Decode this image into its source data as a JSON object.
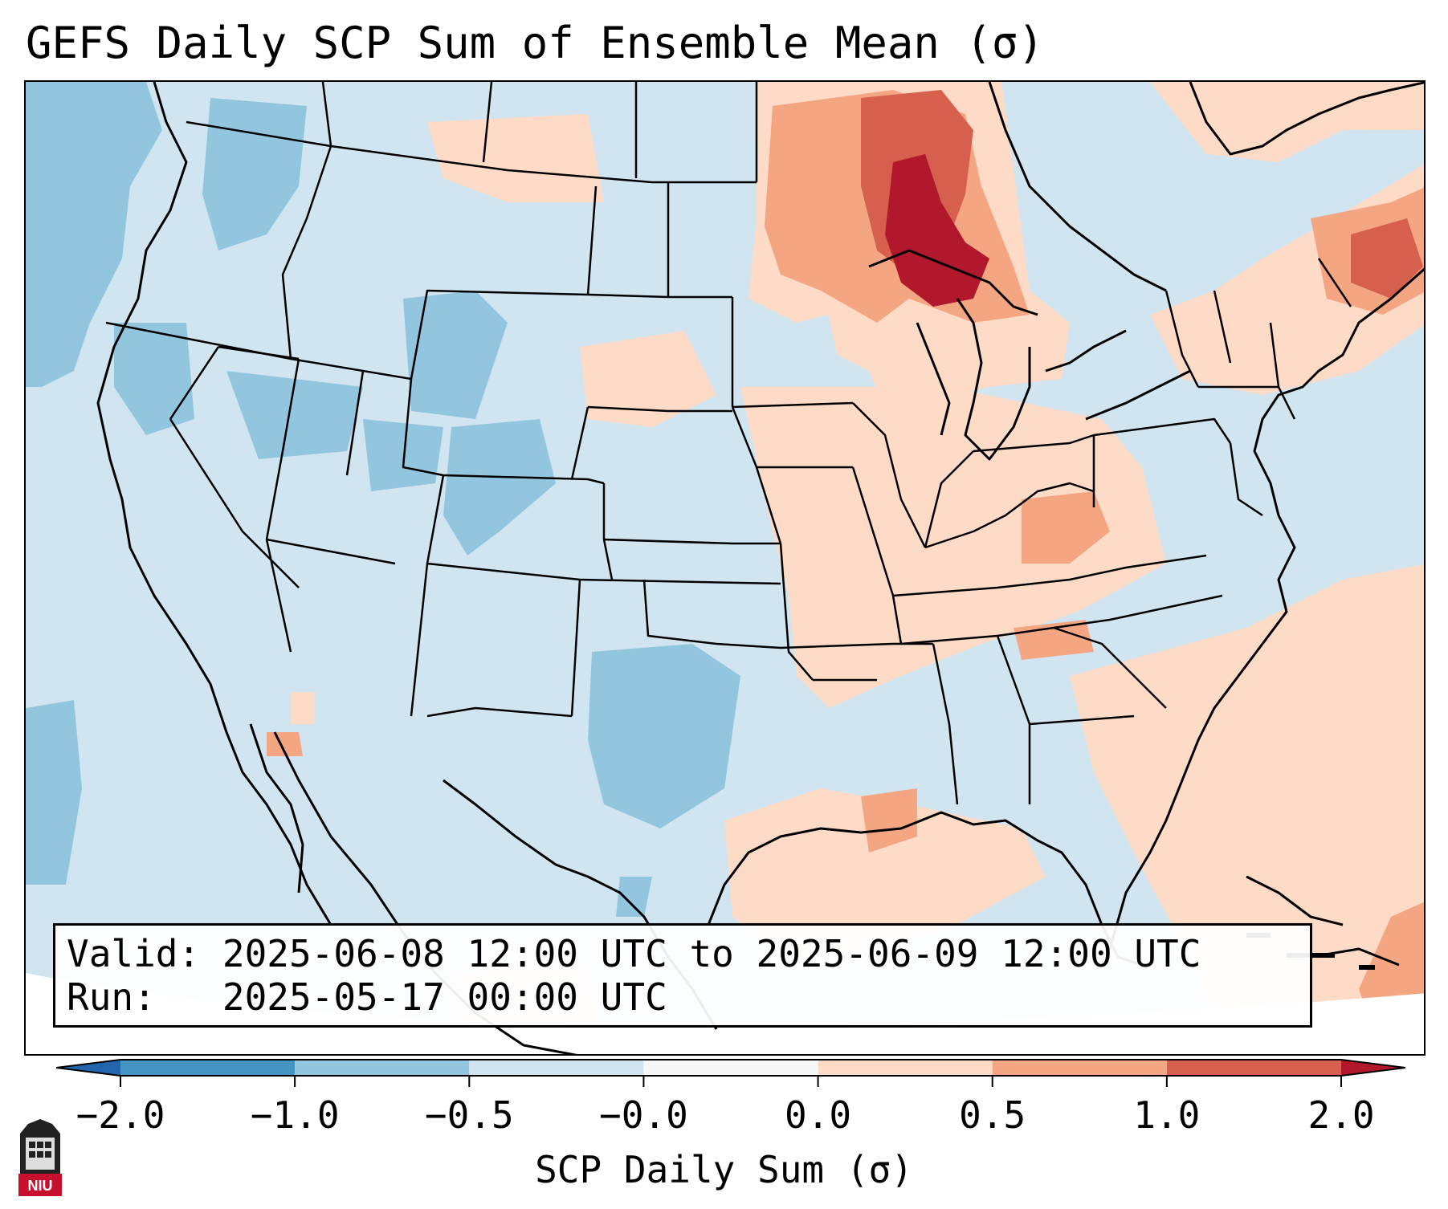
{
  "title": "GEFS Daily SCP Sum of Ensemble Mean (σ)",
  "info": {
    "valid_label": "Valid:",
    "valid_value": "2025-06-08 12:00 UTC to 2025-06-09 12:00 UTC",
    "run_label": "Run:",
    "run_value": "2025-05-17 00:00 UTC"
  },
  "colorbar": {
    "label": "SCP Daily Sum (σ)",
    "ticks": [
      "−2.0",
      "−1.0",
      "−0.5",
      "−0.0",
      "0.0",
      "0.5",
      "1.0",
      "2.0"
    ],
    "bins": [
      {
        "range": "< -2.0",
        "color": "#2166ac"
      },
      {
        "range": "-2.0 to -1.0",
        "color": "#4393c3"
      },
      {
        "range": "-1.0 to -0.5",
        "color": "#92c5de"
      },
      {
        "range": "-0.5 to -0.0",
        "color": "#d1e5f0"
      },
      {
        "range": "-0.0 to 0.0",
        "color": "#f7f7f7"
      },
      {
        "range": "0.0 to 0.5",
        "color": "#fddbc7"
      },
      {
        "range": "0.5 to 1.0",
        "color": "#f4a582"
      },
      {
        "range": "1.0 to 2.0",
        "color": "#d6604d"
      },
      {
        "range": "> 2.0",
        "color": "#b2182b"
      }
    ]
  },
  "logo": {
    "text": "NIU",
    "color": "#c8102e"
  }
}
